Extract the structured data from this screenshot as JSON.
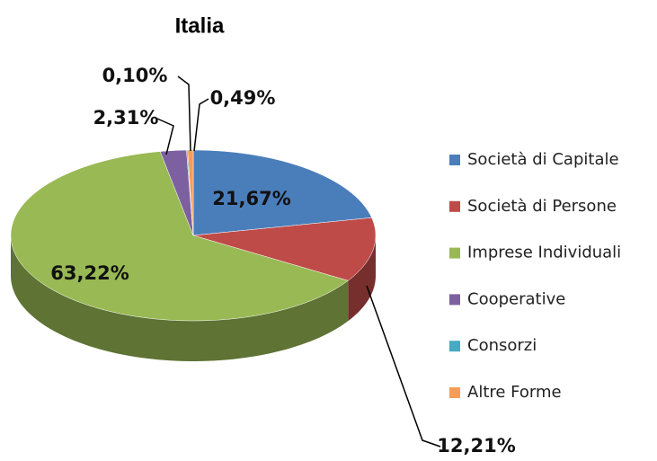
{
  "chart_data": {
    "type": "pie",
    "title": "Italia",
    "categories": [
      "Società di Capitale",
      "Società di Persone",
      "Imprese Individuali",
      "Cooperative",
      "Consorzi",
      "Altre Forme"
    ],
    "values": [
      21.67,
      12.21,
      63.22,
      2.31,
      0.1,
      0.49
    ],
    "value_labels": [
      "21,67%",
      "12,21%",
      "63,22%",
      "2,31%",
      "0,10%",
      "0,49%"
    ],
    "colors": [
      "#4a7ebb",
      "#be4b48",
      "#98b954",
      "#7d60a0",
      "#46aac5",
      "#f59d56"
    ],
    "legend": "right"
  }
}
